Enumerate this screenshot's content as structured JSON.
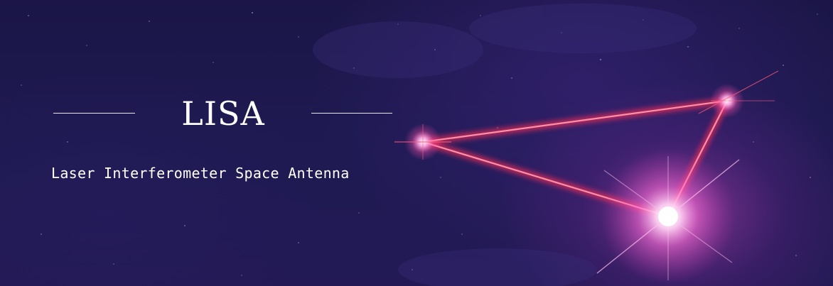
{
  "banner": {
    "title": "LISA",
    "subtitle": "Laser Interferometer Space Antenna"
  },
  "colors": {
    "background": "#1c1748",
    "laser": "#ff3b5c",
    "glow": "#ff7be0",
    "text": "#ffffff"
  }
}
